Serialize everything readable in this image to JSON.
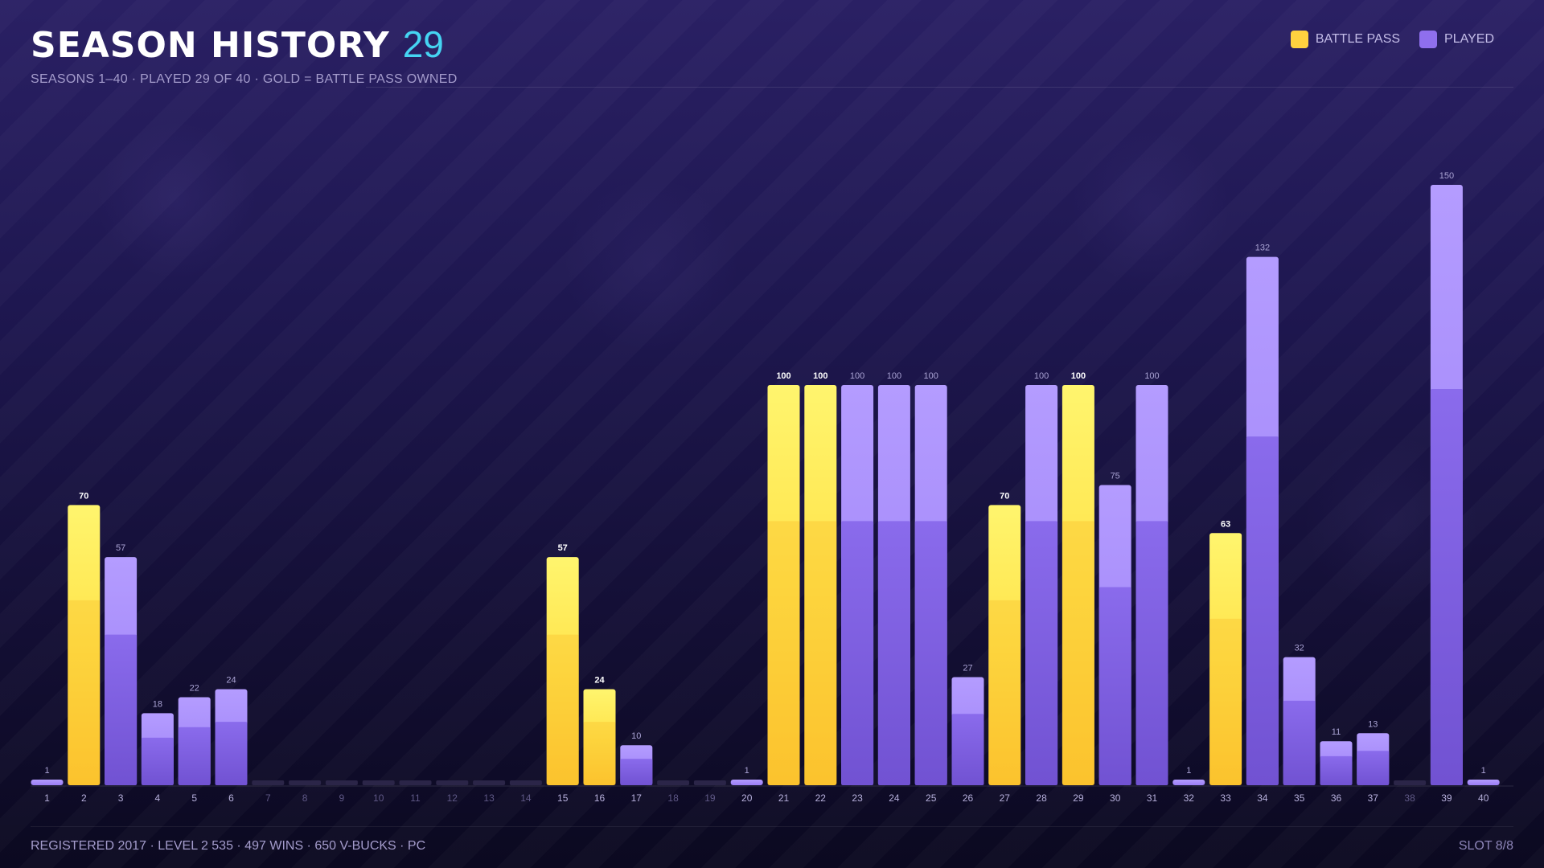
{
  "header": {
    "title": "SEASON HISTORY",
    "count": "29",
    "subtitle": "SEASONS 1–40  ·  PLAYED 29 OF 40  ·  GOLD = BATTLE PASS OWNED"
  },
  "legend": {
    "battle_pass_label": "BATTLE PASS",
    "played_label": "PLAYED"
  },
  "colors": {
    "gold": "#ffd23f",
    "purple": "#8f6fee",
    "accent": "#45d4f2",
    "empty": "#2b2548"
  },
  "chart_data": {
    "type": "bar",
    "title": "SEASON HISTORY",
    "xlabel": "",
    "ylabel": "",
    "ylim": [
      0,
      150
    ],
    "grid": false,
    "legend_position": "top-right",
    "categories": [
      "1",
      "2",
      "3",
      "4",
      "5",
      "6",
      "7",
      "8",
      "9",
      "10",
      "11",
      "12",
      "13",
      "14",
      "15",
      "16",
      "17",
      "18",
      "19",
      "20",
      "21",
      "22",
      "23",
      "24",
      "25",
      "26",
      "27",
      "28",
      "29",
      "30",
      "31",
      "32",
      "33",
      "34",
      "35",
      "36",
      "37",
      "38",
      "39",
      "40"
    ],
    "values": [
      1,
      70,
      57,
      18,
      22,
      24,
      0,
      0,
      0,
      0,
      0,
      0,
      0,
      0,
      57,
      24,
      10,
      0,
      0,
      1,
      100,
      100,
      100,
      100,
      100,
      27,
      70,
      100,
      100,
      75,
      100,
      1,
      63,
      132,
      32,
      11,
      13,
      0,
      150,
      1
    ],
    "value_labels": [
      "1",
      "70",
      "57",
      "18",
      "22",
      "24",
      "",
      "",
      "",
      "",
      "",
      "",
      "",
      "",
      "57",
      "24",
      "10",
      "",
      "",
      "1",
      "100",
      "100",
      "100",
      "100",
      "100",
      "27",
      "70",
      "100",
      "100",
      "75",
      "100",
      "1",
      "63",
      "132",
      "32",
      "11",
      "13",
      "",
      "150",
      "1"
    ],
    "battle_pass": [
      false,
      true,
      false,
      false,
      false,
      false,
      false,
      false,
      false,
      false,
      false,
      false,
      false,
      false,
      true,
      true,
      false,
      false,
      false,
      false,
      true,
      true,
      false,
      false,
      false,
      false,
      true,
      false,
      true,
      false,
      false,
      false,
      true,
      false,
      false,
      false,
      false,
      false,
      false,
      false
    ],
    "played": [
      true,
      true,
      true,
      true,
      true,
      true,
      false,
      false,
      false,
      false,
      false,
      false,
      false,
      false,
      true,
      true,
      true,
      false,
      false,
      true,
      true,
      true,
      true,
      true,
      true,
      true,
      true,
      true,
      true,
      true,
      true,
      true,
      true,
      true,
      true,
      true,
      true,
      false,
      true,
      true
    ],
    "series": [
      {
        "name": "BATTLE PASS"
      },
      {
        "name": "PLAYED"
      }
    ]
  },
  "footer": {
    "info": "REGISTERED 2017  ·  LEVEL 2 535  ·  497 WINS  ·  650 V-BUCKS  ·  PC",
    "slot": "SLOT 8/8"
  }
}
